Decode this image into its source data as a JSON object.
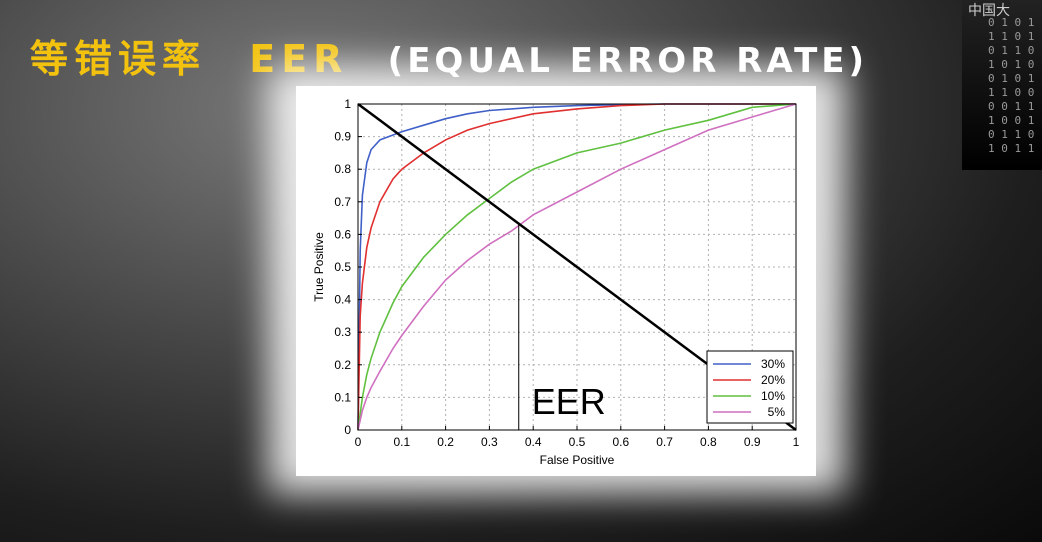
{
  "slide": {
    "title_cn": "等错误率",
    "title_abbr": "EER",
    "title_en": "(EQUAL ERROR RATE)"
  },
  "watermark": {
    "logo_text": "中国大",
    "bits": [
      "0 1 0 1",
      "1 1 0 1",
      "0 1 1 0",
      "1 0 1 0",
      "0 1 0 1",
      "1 1 0 0",
      "0 0 1 1",
      "1 0 0 1",
      "0 1 1 0",
      "1 0 1 1"
    ]
  },
  "chart_data": {
    "type": "line",
    "xlabel": "False Positive",
    "ylabel": "True Positive",
    "xlim": [
      0,
      1
    ],
    "ylim": [
      0,
      1
    ],
    "xticks": [
      "0",
      "0.1",
      "0.2",
      "0.3",
      "0.4",
      "0.5",
      "0.6",
      "0.7",
      "0.8",
      "0.9",
      "1"
    ],
    "yticks": [
      "0",
      "0.1",
      "0.2",
      "0.3",
      "0.4",
      "0.5",
      "0.6",
      "0.7",
      "0.8",
      "0.9",
      "1"
    ],
    "grid": true,
    "legend_position": "bottom-right",
    "series": [
      {
        "name": "30%",
        "color": "#4060c8",
        "x": [
          0,
          0.005,
          0.01,
          0.02,
          0.03,
          0.05,
          0.08,
          0.1,
          0.15,
          0.2,
          0.25,
          0.3,
          0.4,
          0.5,
          0.6,
          0.7,
          0.8,
          0.9,
          1
        ],
        "y": [
          0,
          0.55,
          0.72,
          0.82,
          0.86,
          0.89,
          0.905,
          0.915,
          0.935,
          0.955,
          0.97,
          0.98,
          0.99,
          0.995,
          0.998,
          1,
          1,
          1,
          1
        ]
      },
      {
        "name": "20%",
        "color": "#e03030",
        "x": [
          0,
          0.005,
          0.01,
          0.02,
          0.03,
          0.05,
          0.08,
          0.1,
          0.15,
          0.2,
          0.25,
          0.3,
          0.4,
          0.5,
          0.6,
          0.7,
          0.8,
          0.9,
          1
        ],
        "y": [
          0,
          0.35,
          0.45,
          0.56,
          0.62,
          0.7,
          0.77,
          0.8,
          0.85,
          0.89,
          0.92,
          0.94,
          0.97,
          0.985,
          0.995,
          1,
          1,
          1,
          1
        ]
      },
      {
        "name": "10%",
        "color": "#60c040",
        "x": [
          0,
          0.005,
          0.01,
          0.02,
          0.03,
          0.05,
          0.08,
          0.1,
          0.15,
          0.2,
          0.25,
          0.3,
          0.35,
          0.4,
          0.5,
          0.6,
          0.7,
          0.8,
          0.9,
          1
        ],
        "y": [
          0,
          0.05,
          0.1,
          0.17,
          0.22,
          0.3,
          0.39,
          0.44,
          0.53,
          0.6,
          0.66,
          0.71,
          0.76,
          0.8,
          0.85,
          0.88,
          0.92,
          0.95,
          0.99,
          1
        ]
      },
      {
        "name": "5%",
        "color": "#d070c0",
        "x": [
          0,
          0.005,
          0.01,
          0.02,
          0.03,
          0.05,
          0.08,
          0.1,
          0.15,
          0.2,
          0.25,
          0.3,
          0.35,
          0.4,
          0.5,
          0.6,
          0.7,
          0.8,
          0.9,
          1
        ],
        "y": [
          0,
          0.03,
          0.06,
          0.1,
          0.13,
          0.18,
          0.25,
          0.29,
          0.38,
          0.46,
          0.52,
          0.57,
          0.61,
          0.66,
          0.73,
          0.8,
          0.86,
          0.92,
          0.96,
          1
        ]
      }
    ],
    "annotations": {
      "diagonal": {
        "from": [
          0,
          1
        ],
        "to": [
          1,
          0
        ],
        "color": "#000000"
      },
      "eer_marker": {
        "x": 0.367,
        "y": 0.633,
        "label": "EER"
      }
    }
  }
}
